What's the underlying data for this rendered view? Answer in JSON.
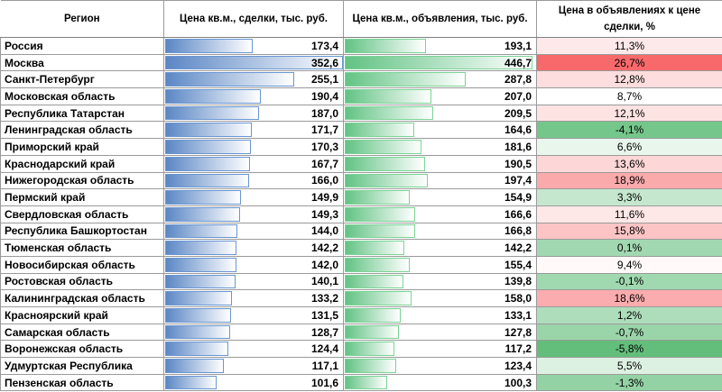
{
  "headers": {
    "region": "Регион",
    "deal": "Цена кв.м., сделки, тыс. руб.",
    "ad": "Цена кв.м., объявления, тыс. руб.",
    "ratio": "Цена в объявлениях к цене сделки, %"
  },
  "colors": {
    "deal_bar": "#5b87c5",
    "ad_bar": "#62c384",
    "ratio_low": "#63be7b",
    "ratio_mid": "#ffffff",
    "ratio_high": "#f8696b"
  },
  "rows": [
    {
      "region": "Россия",
      "deal": "173,4",
      "ad": "193,1",
      "ratio": "11,3%"
    },
    {
      "region": "Москва",
      "deal": "352,6",
      "ad": "446,7",
      "ratio": "26,7%"
    },
    {
      "region": "Санкт-Петербург",
      "deal": "255,1",
      "ad": "287,8",
      "ratio": "12,8%"
    },
    {
      "region": "Московская область",
      "deal": "190,4",
      "ad": "207,0",
      "ratio": "8,7%"
    },
    {
      "region": "Республика Татарстан",
      "deal": "187,0",
      "ad": "209,5",
      "ratio": "12,1%"
    },
    {
      "region": "Ленинградская область",
      "deal": "171,7",
      "ad": "164,6",
      "ratio": "-4,1%"
    },
    {
      "region": "Приморский край",
      "deal": "170,3",
      "ad": "181,6",
      "ratio": "6,6%"
    },
    {
      "region": "Краснодарский край",
      "deal": "167,7",
      "ad": "190,5",
      "ratio": "13,6%"
    },
    {
      "region": "Нижегородская область",
      "deal": "166,0",
      "ad": "197,4",
      "ratio": "18,9%"
    },
    {
      "region": "Пермский край",
      "deal": "149,9",
      "ad": "154,9",
      "ratio": "3,3%"
    },
    {
      "region": "Свердловская область",
      "deal": "149,3",
      "ad": "166,6",
      "ratio": "11,6%"
    },
    {
      "region": "Республика Башкортостан",
      "deal": "144,0",
      "ad": "166,8",
      "ratio": "15,8%"
    },
    {
      "region": "Тюменская область",
      "deal": "142,2",
      "ad": "142,2",
      "ratio": "0,1%"
    },
    {
      "region": "Новосибирская область",
      "deal": "142,0",
      "ad": "155,4",
      "ratio": "9,4%"
    },
    {
      "region": "Ростовская область",
      "deal": "140,1",
      "ad": "139,8",
      "ratio": "-0,1%"
    },
    {
      "region": "Калининградская область",
      "deal": "133,2",
      "ad": "158,0",
      "ratio": "18,6%"
    },
    {
      "region": "Красноярский край",
      "deal": "131,5",
      "ad": "133,1",
      "ratio": "1,2%"
    },
    {
      "region": "Самарская область",
      "deal": "128,7",
      "ad": "127,8",
      "ratio": "-0,7%"
    },
    {
      "region": "Воронежская область",
      "deal": "124,4",
      "ad": "117,2",
      "ratio": "-5,8%"
    },
    {
      "region": "Удмуртская Республика",
      "deal": "117,1",
      "ad": "123,4",
      "ratio": "5,5%"
    },
    {
      "region": "Пензенская область",
      "deal": "101,6",
      "ad": "100,3",
      "ratio": "-1,3%"
    }
  ]
}
